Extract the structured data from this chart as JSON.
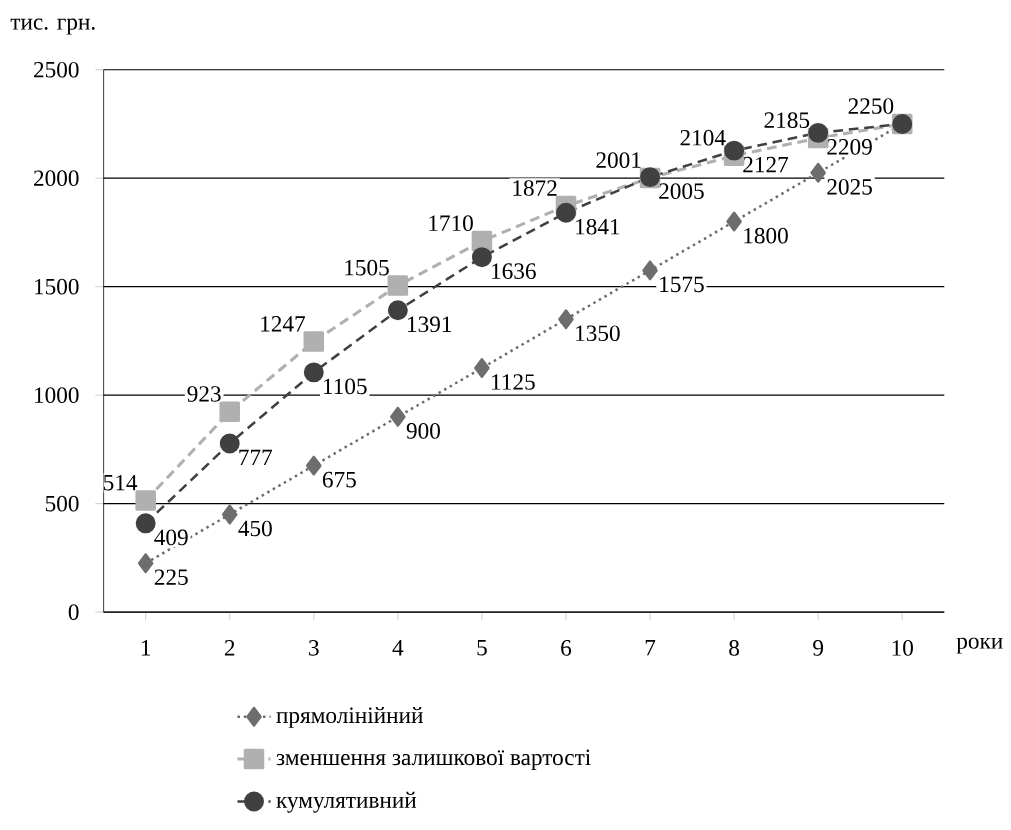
{
  "chart_data": {
    "type": "line",
    "ylabel": "тис. грн.",
    "xlabel": "роки",
    "categories": [
      "1",
      "2",
      "3",
      "4",
      "5",
      "6",
      "7",
      "8",
      "9",
      "10"
    ],
    "ylim": [
      0,
      2500
    ],
    "yticks": [
      0,
      500,
      1000,
      1500,
      2000,
      2500
    ],
    "grid": "y",
    "legend": "bottom",
    "series": [
      {
        "name": "прямолінійний",
        "color": "#6d6d6d",
        "marker": "diamond",
        "line_style": "dotted",
        "values": [
          225,
          450,
          675,
          900,
          1125,
          1350,
          1575,
          1800,
          2025,
          2250
        ],
        "value_labels": [
          "225",
          "450",
          "675",
          "900",
          "1125",
          "1350",
          "1575",
          "1800",
          "2025",
          null
        ]
      },
      {
        "name": "зменшення залишкової вартості",
        "color": "#b0b0b0",
        "marker": "square",
        "line_style": "dashed",
        "values": [
          514,
          923,
          1247,
          1505,
          1710,
          1872,
          2001,
          2104,
          2185,
          2250
        ],
        "value_labels": [
          "514",
          "923",
          "1247",
          "1505",
          "1710",
          "1872",
          "2001",
          "2104",
          "2185",
          "2250"
        ]
      },
      {
        "name": "кумулятивний",
        "color": "#404040",
        "marker": "circle",
        "line_style": "dashed",
        "values": [
          409,
          777,
          1105,
          1391,
          1636,
          1841,
          2005,
          2127,
          2209,
          2250
        ],
        "value_labels": [
          "409",
          "777",
          "1105",
          "1391",
          "1636",
          "1841",
          "2005",
          "2127",
          "2209",
          null
        ]
      }
    ]
  }
}
